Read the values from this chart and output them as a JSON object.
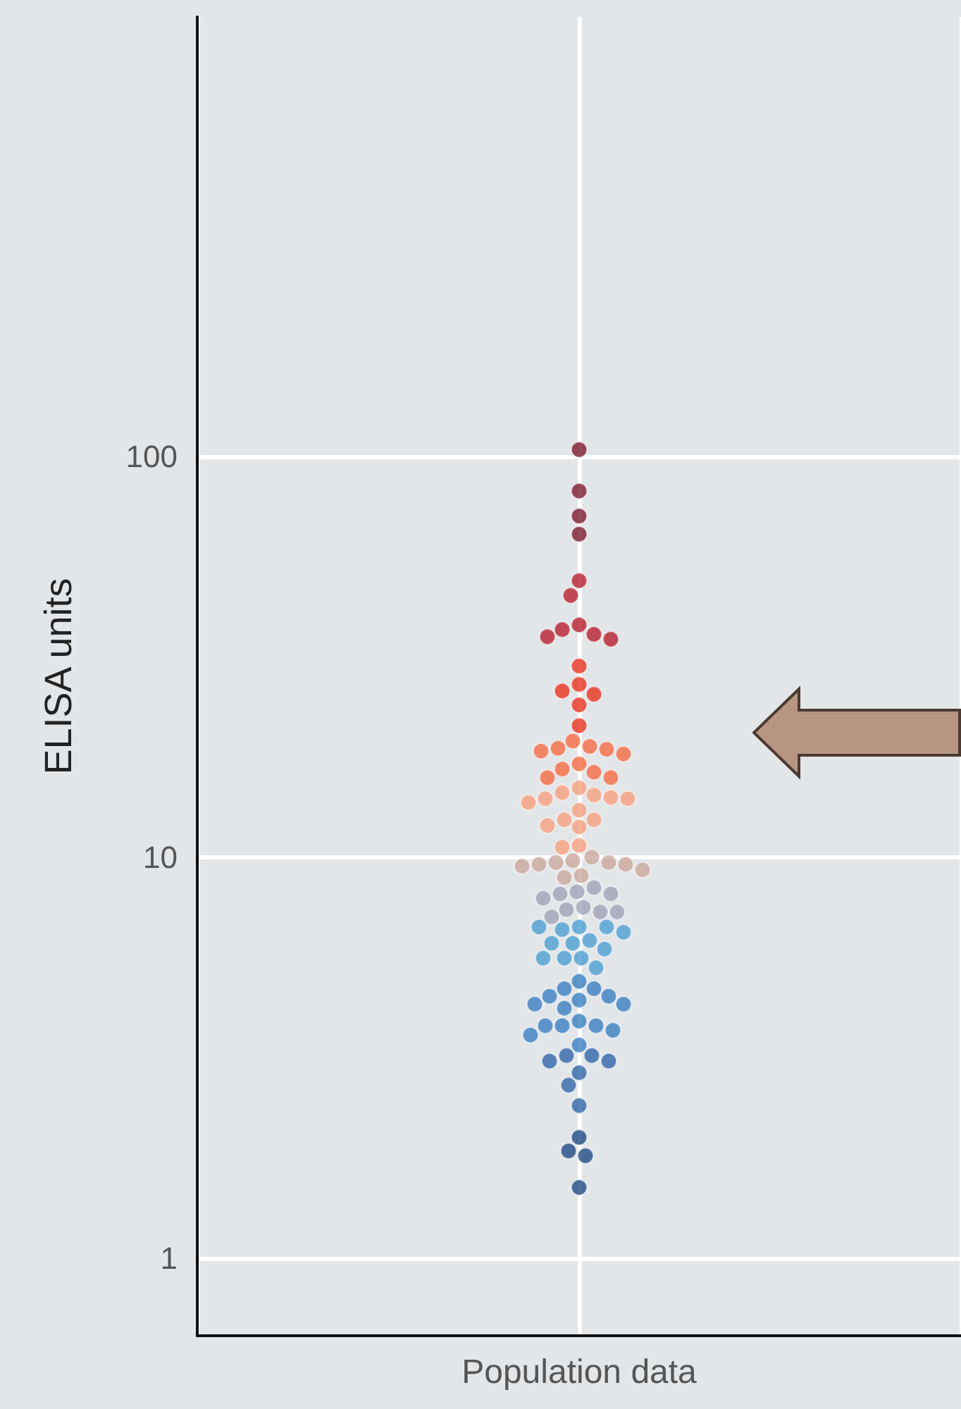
{
  "chart_data": {
    "type": "scatter",
    "ylabel": "ELISA units",
    "categories": [
      "Population data"
    ],
    "series": [
      {
        "color": "#7a1a2e",
        "x": [
          "Population data",
          "Population data",
          "Population data",
          "Population data"
        ],
        "values": [
          104,
          82,
          71,
          64
        ]
      },
      {
        "color": "#b5202e",
        "x": [
          "Population data",
          "Population data",
          "Population data",
          "Population data",
          "Population data",
          "Population data",
          "Population data"
        ],
        "values": [
          49,
          45,
          38,
          37,
          36,
          35.5,
          35
        ]
      },
      {
        "color": "#e8321e",
        "x": [
          "Population data",
          "Population data",
          "Population data",
          "Population data",
          "Population data",
          "Population data"
        ],
        "values": [
          30,
          27,
          26,
          25.5,
          24,
          21.3
        ]
      },
      {
        "color": "#f26b43",
        "x": [
          "Population data",
          "Population data",
          "Population data",
          "Population data",
          "Population data",
          "Population data",
          "Population data",
          "Population data",
          "Population data",
          "Population data",
          "Population data"
        ],
        "values": [
          19.5,
          18.9,
          18.7,
          18.6,
          18.4,
          18.1,
          17.1,
          16.6,
          16.3,
          15.8,
          15.8
        ]
      },
      {
        "color": "#f5a07e",
        "x": [
          "Population data",
          "Population data",
          "Population data",
          "Population data",
          "Population data",
          "Population data",
          "Population data",
          "Population data",
          "Population data",
          "Population data",
          "Population data",
          "Population data",
          "Population data",
          "Population data"
        ],
        "values": [
          14.9,
          14.5,
          14.3,
          14.1,
          14.0,
          14.0,
          13.7,
          13.1,
          12.4,
          12.4,
          12.0,
          11.9,
          10.7,
          10.6
        ]
      },
      {
        "color": "#c9a79c",
        "x": [
          "Population data",
          "Population data",
          "Population data",
          "Population data",
          "Population data",
          "Population data",
          "Population data",
          "Population data",
          "Population data",
          "Population data"
        ],
        "values": [
          10.0,
          9.8,
          9.7,
          9.7,
          9.6,
          9.6,
          9.5,
          9.3,
          9.0,
          8.9
        ]
      },
      {
        "color": "#a0a3b8",
        "x": [
          "Population data",
          "Population data",
          "Population data",
          "Population data",
          "Population data",
          "Population data",
          "Population data",
          "Population data",
          "Population data",
          "Population data"
        ],
        "values": [
          8.4,
          8.2,
          8.1,
          8.1,
          7.9,
          7.5,
          7.4,
          7.3,
          7.3,
          7.1
        ]
      },
      {
        "color": "#4d9fd2",
        "x": [
          "Population data",
          "Population data",
          "Population data",
          "Population data",
          "Population data",
          "Population data",
          "Population data",
          "Population data",
          "Population data",
          "Population data",
          "Population data",
          "Population data",
          "Population data"
        ],
        "values": [
          6.7,
          6.7,
          6.7,
          6.6,
          6.5,
          6.2,
          6.1,
          6.1,
          5.9,
          5.6,
          5.6,
          5.6,
          5.3
        ]
      },
      {
        "color": "#3a7fc0",
        "x": [
          "Population data",
          "Population data",
          "Population data",
          "Population data",
          "Population data",
          "Population data",
          "Population data",
          "Population data",
          "Population data",
          "Population data",
          "Population data",
          "Population data",
          "Population data",
          "Population data",
          "Population data",
          "Population data"
        ],
        "values": [
          4.9,
          4.7,
          4.7,
          4.5,
          4.5,
          4.4,
          4.3,
          4.3,
          4.2,
          3.9,
          3.8,
          3.8,
          3.8,
          3.7,
          3.6,
          3.4
        ]
      },
      {
        "color": "#2f67a8",
        "x": [
          "Population data",
          "Population data",
          "Population data",
          "Population data",
          "Population data",
          "Population data",
          "Population data"
        ],
        "values": [
          3.2,
          3.2,
          3.1,
          3.1,
          2.9,
          2.7,
          2.4
        ]
      },
      {
        "color": "#1f4a82",
        "x": [
          "Population data",
          "Population data",
          "Population data",
          "Population data"
        ],
        "values": [
          2.0,
          1.85,
          1.8,
          1.5
        ]
      }
    ],
    "ylim": [
      0.64,
      1250
    ],
    "yticks": [
      1,
      10,
      100
    ],
    "log": true,
    "grid": true,
    "marker": "circle"
  }
}
